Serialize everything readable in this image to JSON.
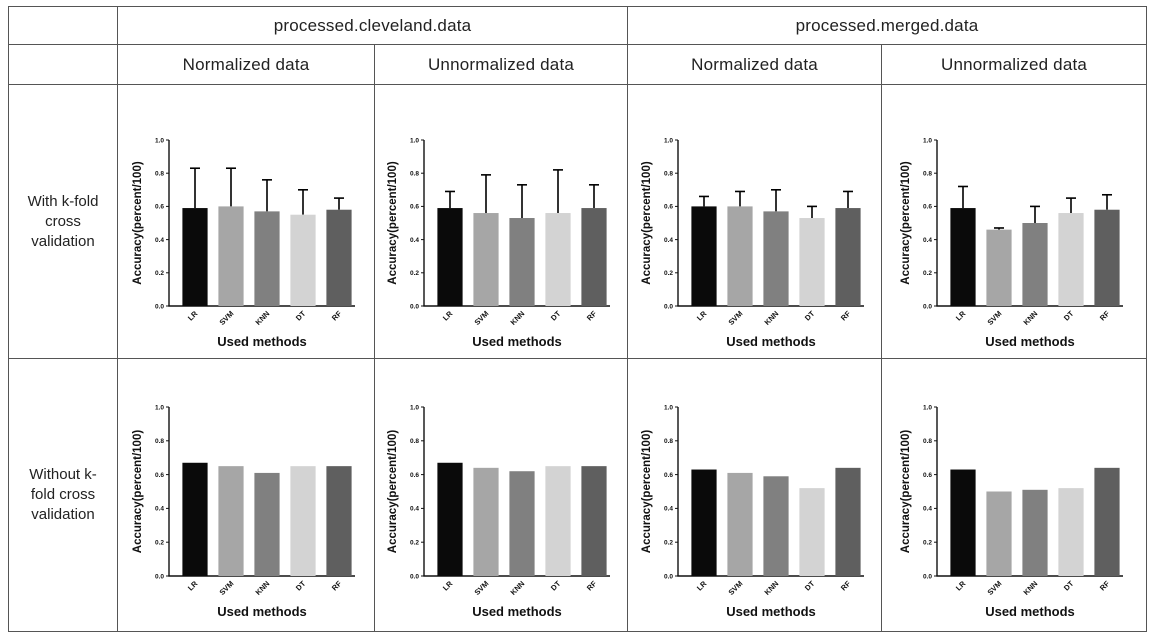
{
  "table": {
    "datasets": [
      "processed.cleveland.data",
      "processed.merged.data"
    ],
    "normalizations": [
      "Normalized  data",
      "Unnormalized  data",
      "Normalized  data",
      "Unnormalized  data"
    ],
    "rows": [
      {
        "label_lines": [
          "With k-fold",
          "cross",
          "validation"
        ]
      },
      {
        "label_lines": [
          "Without k-",
          "fold cross",
          "validation"
        ]
      }
    ]
  },
  "colors": {
    "bars": [
      "#0a0a0a",
      "#a6a6a6",
      "#808080",
      "#d3d3d3",
      "#5f5f5f"
    ],
    "grid_border": "#555555"
  },
  "chart_data": [
    {
      "type": "bar",
      "dataset": "processed.cleveland.data",
      "normalization": "Normalized data",
      "validation": "With k-fold cross validation",
      "categories": [
        "LR",
        "SVM",
        "KNN",
        "DT",
        "RF"
      ],
      "values": [
        0.59,
        0.6,
        0.57,
        0.55,
        0.58
      ],
      "error": [
        0.24,
        0.23,
        0.19,
        0.15,
        0.07
      ],
      "xlabel": "Used methods",
      "ylabel": "Accuracy(percent/100)",
      "ylim": [
        0,
        1.0
      ],
      "yticks": [
        "0.0",
        "0.2",
        "0.4",
        "0.6",
        "0.8",
        "1.0"
      ]
    },
    {
      "type": "bar",
      "dataset": "processed.cleveland.data",
      "normalization": "Unnormalized data",
      "validation": "With k-fold cross validation",
      "categories": [
        "LR",
        "SVM",
        "KNN",
        "DT",
        "RF"
      ],
      "values": [
        0.59,
        0.56,
        0.53,
        0.56,
        0.59
      ],
      "error": [
        0.1,
        0.23,
        0.2,
        0.26,
        0.14
      ],
      "xlabel": "Used methods",
      "ylabel": "Accuracy(percent/100)",
      "ylim": [
        0,
        1.0
      ],
      "yticks": [
        "0.0",
        "0.2",
        "0.4",
        "0.6",
        "0.8",
        "1.0"
      ]
    },
    {
      "type": "bar",
      "dataset": "processed.merged.data",
      "normalization": "Normalized data",
      "validation": "With k-fold cross validation",
      "categories": [
        "LR",
        "SVM",
        "KNN",
        "DT",
        "RF"
      ],
      "values": [
        0.6,
        0.6,
        0.57,
        0.53,
        0.59
      ],
      "error": [
        0.06,
        0.09,
        0.13,
        0.07,
        0.1
      ],
      "xlabel": "Used methods",
      "ylabel": "Accuracy(percent/100)",
      "ylim": [
        0,
        1.0
      ],
      "yticks": [
        "0.0",
        "0.2",
        "0.4",
        "0.6",
        "0.8",
        "1.0"
      ]
    },
    {
      "type": "bar",
      "dataset": "processed.merged.data",
      "normalization": "Unnormalized data",
      "validation": "With k-fold cross validation",
      "categories": [
        "LR",
        "SVM",
        "KNN",
        "DT",
        "RF"
      ],
      "values": [
        0.59,
        0.46,
        0.5,
        0.56,
        0.58
      ],
      "error": [
        0.13,
        0.01,
        0.1,
        0.09,
        0.09
      ],
      "xlabel": "Used methods",
      "ylabel": "Accuracy(percent/100)",
      "ylim": [
        0,
        1.0
      ],
      "yticks": [
        "0.0",
        "0.2",
        "0.4",
        "0.6",
        "0.8",
        "1.0"
      ]
    },
    {
      "type": "bar",
      "dataset": "processed.cleveland.data",
      "normalization": "Normalized data",
      "validation": "Without k-fold cross validation",
      "categories": [
        "LR",
        "SVM",
        "KNN",
        "DT",
        "RF"
      ],
      "values": [
        0.67,
        0.65,
        0.61,
        0.65,
        0.65
      ],
      "xlabel": "Used methods",
      "ylabel": "Accuracy(percent/100)",
      "ylim": [
        0,
        1.0
      ],
      "yticks": [
        "0.0",
        "0.2",
        "0.4",
        "0.6",
        "0.8",
        "1.0"
      ]
    },
    {
      "type": "bar",
      "dataset": "processed.cleveland.data",
      "normalization": "Unnormalized data",
      "validation": "Without k-fold cross validation",
      "categories": [
        "LR",
        "SVM",
        "KNN",
        "DT",
        "RF"
      ],
      "values": [
        0.67,
        0.64,
        0.62,
        0.65,
        0.65
      ],
      "xlabel": "Used methods",
      "ylabel": "Accuracy(percent/100)",
      "ylim": [
        0,
        1.0
      ],
      "yticks": [
        "0.0",
        "0.2",
        "0.4",
        "0.6",
        "0.8",
        "1.0"
      ]
    },
    {
      "type": "bar",
      "dataset": "processed.merged.data",
      "normalization": "Normalized data",
      "validation": "Without k-fold cross validation",
      "categories": [
        "LR",
        "SVM",
        "KNN",
        "DT",
        "RF"
      ],
      "values": [
        0.63,
        0.61,
        0.59,
        0.52,
        0.64
      ],
      "xlabel": "Used methods",
      "ylabel": "Accuracy(percent/100)",
      "ylim": [
        0,
        1.0
      ],
      "yticks": [
        "0.0",
        "0.2",
        "0.4",
        "0.6",
        "0.8",
        "1.0"
      ]
    },
    {
      "type": "bar",
      "dataset": "processed.merged.data",
      "normalization": "Unnormalized data",
      "validation": "Without k-fold cross validation",
      "categories": [
        "LR",
        "SVM",
        "KNN",
        "DT",
        "RF"
      ],
      "values": [
        0.63,
        0.5,
        0.51,
        0.52,
        0.64
      ],
      "xlabel": "Used methods",
      "ylabel": "Accuracy(percent/100)",
      "ylim": [
        0,
        1.0
      ],
      "yticks": [
        "0.0",
        "0.2",
        "0.4",
        "0.6",
        "0.8",
        "1.0"
      ]
    }
  ]
}
